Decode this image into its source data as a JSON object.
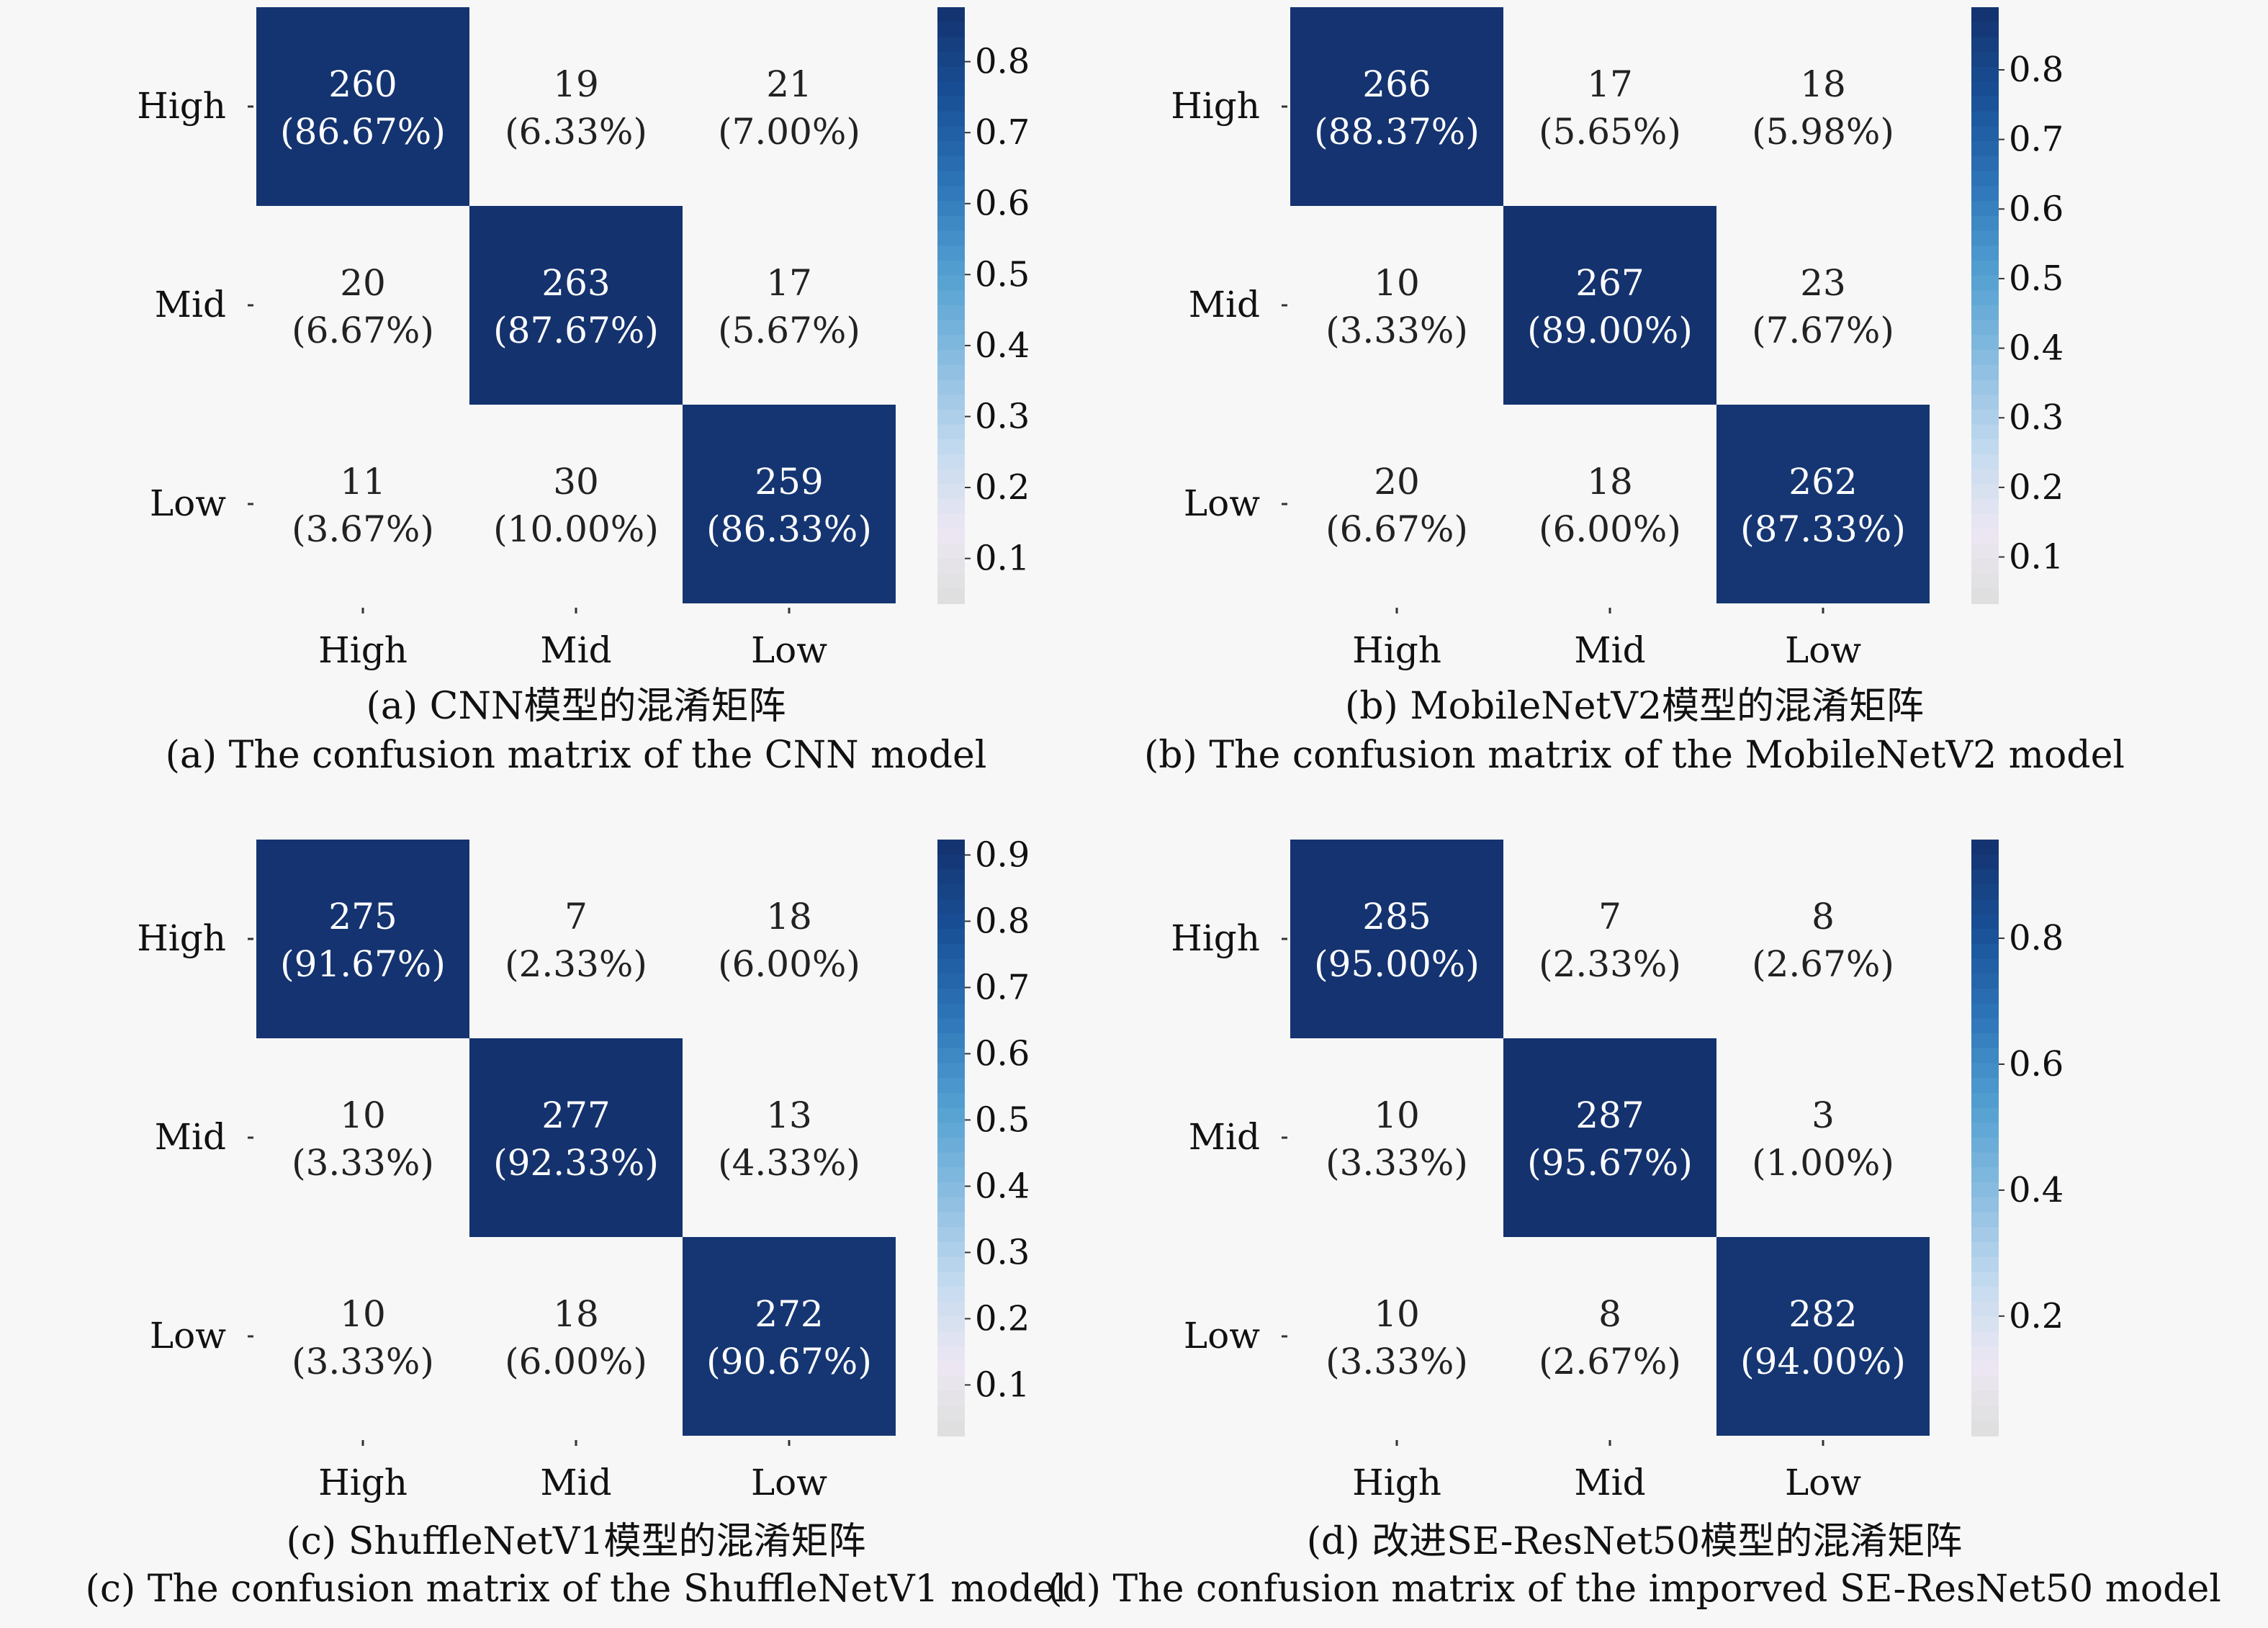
{
  "chart_data": [
    {
      "type": "heatmap",
      "title": "",
      "categories": [
        "High",
        "Mid",
        "Low"
      ],
      "xlabel": "",
      "ylabel": "",
      "counts": [
        [
          260,
          19,
          21
        ],
        [
          20,
          263,
          17
        ],
        [
          11,
          30,
          259
        ]
      ],
      "percents": [
        [
          "86.67%",
          "6.33%",
          "7.00%"
        ],
        [
          "6.67%",
          "87.67%",
          "5.67%"
        ],
        [
          "3.67%",
          "10.00%",
          "86.33%"
        ]
      ],
      "colorbar": {
        "ticks": [
          "0.1",
          "0.2",
          "0.3",
          "0.4",
          "0.5",
          "0.6",
          "0.7",
          "0.8"
        ],
        "range": [
          0.0367,
          0.8767
        ]
      },
      "caption_cn": "(a) CNN模型的混淆矩阵",
      "caption_en": "(a) The confusion matrix of the CNN model"
    },
    {
      "type": "heatmap",
      "title": "",
      "categories": [
        "High",
        "Mid",
        "Low"
      ],
      "xlabel": "",
      "ylabel": "",
      "counts": [
        [
          266,
          17,
          18
        ],
        [
          10,
          267,
          23
        ],
        [
          20,
          18,
          262
        ]
      ],
      "percents": [
        [
          "88.37%",
          "5.65%",
          "5.98%"
        ],
        [
          "3.33%",
          "89.00%",
          "7.67%"
        ],
        [
          "6.67%",
          "6.00%",
          "87.33%"
        ]
      ],
      "colorbar": {
        "ticks": [
          "0.1",
          "0.2",
          "0.3",
          "0.4",
          "0.5",
          "0.6",
          "0.7",
          "0.8"
        ],
        "range": [
          0.0333,
          0.89
        ]
      },
      "caption_cn": "(b) MobileNetV2模型的混淆矩阵",
      "caption_en": "(b) The confusion matrix of the MobileNetV2 model"
    },
    {
      "type": "heatmap",
      "title": "",
      "categories": [
        "High",
        "Mid",
        "Low"
      ],
      "xlabel": "",
      "ylabel": "",
      "counts": [
        [
          275,
          7,
          18
        ],
        [
          10,
          277,
          13
        ],
        [
          10,
          18,
          272
        ]
      ],
      "percents": [
        [
          "91.67%",
          "2.33%",
          "6.00%"
        ],
        [
          "3.33%",
          "92.33%",
          "4.33%"
        ],
        [
          "3.33%",
          "6.00%",
          "90.67%"
        ]
      ],
      "colorbar": {
        "ticks": [
          "0.1",
          "0.2",
          "0.3",
          "0.4",
          "0.5",
          "0.6",
          "0.7",
          "0.8",
          "0.9"
        ],
        "range": [
          0.0233,
          0.9233
        ]
      },
      "caption_cn": "(c) ShuffleNetV1模型的混淆矩阵",
      "caption_en": "(c) The confusion matrix of the ShuffleNetV1 model"
    },
    {
      "type": "heatmap",
      "title": "",
      "categories": [
        "High",
        "Mid",
        "Low"
      ],
      "xlabel": "",
      "ylabel": "",
      "counts": [
        [
          285,
          7,
          8
        ],
        [
          10,
          287,
          3
        ],
        [
          10,
          8,
          282
        ]
      ],
      "percents": [
        [
          "95.00%",
          "2.33%",
          "2.67%"
        ],
        [
          "3.33%",
          "95.67%",
          "1.00%"
        ],
        [
          "3.33%",
          "2.67%",
          "94.00%"
        ]
      ],
      "colorbar": {
        "ticks": [
          "0.2",
          "0.4",
          "0.6",
          "0.8"
        ],
        "range": [
          0.01,
          0.9567
        ]
      },
      "caption_cn": "(d) 改进SE-ResNet50模型的混淆矩阵",
      "caption_en": "(d) The confusion matrix of the imporved SE-ResNet50 model"
    }
  ]
}
